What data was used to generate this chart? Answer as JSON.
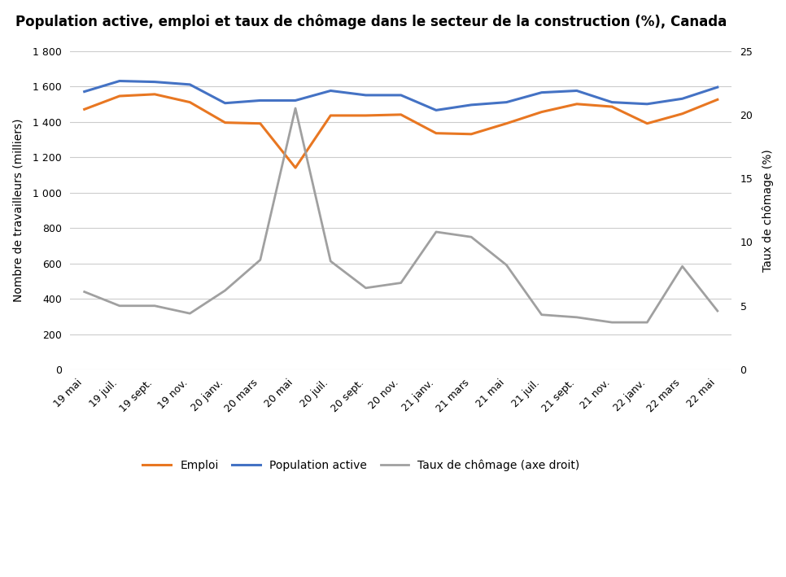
{
  "title": "Population active, emploi et taux de chômage dans le secteur de la construction (%), Canada",
  "xlabel_labels": [
    "19 mai",
    "19 juil.",
    "19 sept.",
    "19 nov.",
    "20 janv.",
    "20 mars",
    "20 mai",
    "20 juil.",
    "20 sept.",
    "20 nov.",
    "21 janv.",
    "21 mars",
    "21 mai",
    "21 juil.",
    "21 sept.",
    "21 nov.",
    "22 janv.",
    "22 mars",
    "22 mai"
  ],
  "emploi": [
    1470,
    1545,
    1555,
    1510,
    1395,
    1390,
    1140,
    1435,
    1435,
    1440,
    1335,
    1330,
    1390,
    1455,
    1500,
    1485,
    1390,
    1445,
    1525
  ],
  "population_active": [
    1570,
    1630,
    1625,
    1610,
    1505,
    1520,
    1520,
    1575,
    1550,
    1550,
    1465,
    1495,
    1510,
    1565,
    1575,
    1510,
    1500,
    1530,
    1595
  ],
  "chomage_pct": [
    6.1,
    5.0,
    5.0,
    4.4,
    6.2,
    8.6,
    20.5,
    8.5,
    6.4,
    6.8,
    10.8,
    10.4,
    8.2,
    4.3,
    4.1,
    3.7,
    3.7,
    8.1,
    4.6
  ],
  "ylim_left": [
    0,
    1800
  ],
  "ylim_right": [
    0,
    25
  ],
  "yticks_left": [
    0,
    200,
    400,
    600,
    800,
    1000,
    1200,
    1400,
    1600,
    1800
  ],
  "yticks_right": [
    0,
    5,
    10,
    15,
    20,
    25
  ],
  "ylabel_left": "Nombre de travailleurs (milliers)",
  "ylabel_right": "Taux de chômage (%)",
  "legend_emploi": "Emploi",
  "legend_pop": "Population active",
  "legend_chomage": "Taux de chômage (axe droit)",
  "color_emploi": "#E87722",
  "color_pop": "#4472C4",
  "color_chomage": "#A0A0A0",
  "background_color": "#FFFFFF",
  "title_fontsize": 12,
  "axis_fontsize": 10,
  "tick_fontsize": 9,
  "legend_fontsize": 10
}
